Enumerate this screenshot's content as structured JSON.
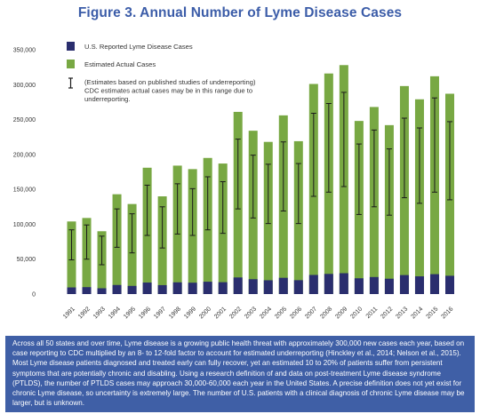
{
  "title": "Figure 3. Annual Number of Lyme Disease Cases",
  "caption": "Across all 50 states and over time, Lyme disease is a growing public health threat with approximately 300,000 new cases each year, based on case reporting to CDC multiplied by an 8- to 12-fold factor to account for estimated underreporting (Hinckley et al., 2014; Nelson et al., 2015). Most Lyme disease patients diagnosed and treated early can fully recover, yet an estimated 10 to 20% of patients suffer from persistent symptoms that are potentially chronic and disabling. Using a research definition of and data on post-treatment Lyme disease syndrome (PTLDS), the number of PTLDS cases may approach 30,000-60,000 each year in the United States. A precise definition does not yet exist for chronic Lyme disease, so uncertainty is extremely large. The number of U.S. patients with a clinical diagnosis of chronic Lyme disease may be larger, but is unknown.",
  "colors": {
    "title": "#3b5ca8",
    "reported": "#2a2e6e",
    "estimated": "#78a843",
    "errorbar": "#1a1a1a",
    "caption_bg": "#3f5fa6"
  },
  "chart_data": {
    "type": "bar",
    "title": "Figure 3. Annual Number of Lyme Disease Cases",
    "xlabel": "",
    "ylabel": "",
    "ylim": [
      0,
      350000
    ],
    "yticks": [
      "0",
      "50,000",
      "100,000",
      "150,000",
      "200,000",
      "250,000",
      "300,000",
      "350,000"
    ],
    "grid": false,
    "legend_position": "top-left",
    "categories": [
      "1991",
      "1992",
      "1993",
      "1994",
      "1995",
      "1996",
      "1997",
      "1998",
      "1999",
      "2000",
      "2001",
      "2002",
      "2003",
      "2004",
      "2005",
      "2006",
      "2007",
      "2008",
      "2009",
      "2010",
      "2011",
      "2012",
      "2013",
      "2014",
      "2015",
      "2016"
    ],
    "series": [
      {
        "name": "U.S. Reported Lyme Disease Cases",
        "values": [
          9500,
          9900,
          8300,
          13000,
          11700,
          16500,
          12800,
          16800,
          16300,
          17700,
          17000,
          23800,
          21300,
          19800,
          23300,
          19900,
          27400,
          28900,
          29900,
          22600,
          24400,
          22000,
          27200,
          25400,
          28500,
          26200
        ]
      },
      {
        "name": "Estimated Actual Cases",
        "values": [
          104000,
          109000,
          90000,
          143000,
          129000,
          181000,
          140000,
          184000,
          179000,
          195000,
          187000,
          261000,
          234000,
          218000,
          256000,
          219000,
          301000,
          316000,
          328000,
          248000,
          268000,
          242000,
          298000,
          279000,
          312000,
          287000
        ]
      }
    ],
    "error_range": {
      "name": "(Estimates based on published studies of underreporting) CDC estimates actual cases may be in this range due to underreporting.",
      "low": [
        49000,
        50000,
        42000,
        67000,
        59000,
        84000,
        66000,
        86000,
        84000,
        92000,
        87000,
        122000,
        109000,
        101000,
        119000,
        101000,
        140000,
        146000,
        154000,
        114000,
        125000,
        113000,
        138000,
        130000,
        146000,
        135000
      ],
      "high": [
        92000,
        99000,
        83000,
        122000,
        115000,
        156000,
        125000,
        158000,
        151000,
        168000,
        161000,
        222000,
        199000,
        186000,
        218000,
        187000,
        259000,
        273000,
        289000,
        215000,
        235000,
        208000,
        252000,
        238000,
        281000,
        247000
      ]
    },
    "legend": [
      {
        "key": "reported",
        "label": "U.S. Reported Lyme Disease Cases"
      },
      {
        "key": "estimated",
        "label": "Estimated Actual Cases"
      },
      {
        "key": "range",
        "label_lines": [
          "(Estimates based on published studies of underreporting)",
          "CDC estimates actual cases may be in this range due to",
          "underreporting."
        ]
      }
    ]
  }
}
